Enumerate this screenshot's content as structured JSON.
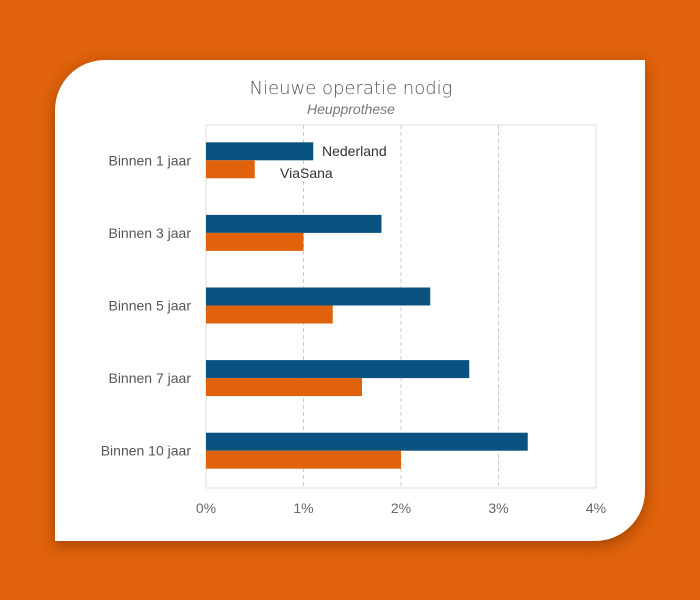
{
  "chart_data": {
    "type": "bar",
    "orientation": "horizontal",
    "title": "Nieuwe operatie nodig",
    "subtitle": "Heupprothese",
    "categories": [
      "Binnen 1 jaar",
      "Binnen 3 jaar",
      "Binnen 5 jaar",
      "Binnen 7 jaar",
      "Binnen 10 jaar"
    ],
    "series": [
      {
        "name": "Nederland",
        "color": "#0a5380",
        "values": [
          1.1,
          1.8,
          2.3,
          2.7,
          3.3
        ]
      },
      {
        "name": "ViaSana",
        "color": "#e0620a",
        "values": [
          0.5,
          1.0,
          1.3,
          1.6,
          2.0
        ]
      }
    ],
    "xlim": [
      0,
      4
    ],
    "xticks": [
      "0%",
      "1%",
      "2%",
      "3%",
      "4%"
    ],
    "xlabel": "",
    "ylabel": "",
    "grid": "vertical dashed",
    "legend": "inline next to first category bars"
  }
}
